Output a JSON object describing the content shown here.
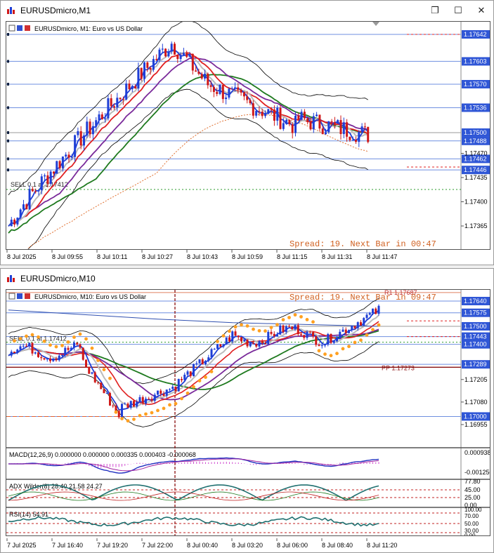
{
  "top": {
    "window_title": "EURUSDmicro,M1",
    "header": "EURUSDmicro, M1:  Euro vs US Dollar",
    "spread_text": "Spread: 19. Next Bar in 00:47",
    "sell_label": "SELL 0.1 at 1.17412",
    "price_labels": [
      "1.17642",
      "1.17603",
      "1.17570",
      "1.17536",
      "1.17500",
      "1.17488",
      "1.17462",
      "1.17446"
    ],
    "axis_ticks": [
      "1.17470",
      "1.17435",
      "1.17400",
      "1.17365"
    ],
    "time_labels": [
      "8 Jul 2025",
      "8 Jul 09:55",
      "8 Jul 10:11",
      "8 Jul 10:27",
      "8 Jul 10:43",
      "8 Jul 10:59",
      "8 Jul 11:15",
      "8 Jul 11:31",
      "8 Jul 11:47"
    ]
  },
  "bottom": {
    "window_title": "EURUSDmicro,M10",
    "header": "EURUSDmicro, M10:  Euro vs US Dollar",
    "spread_text": "Spread: 19. Next Bar in 09:47",
    "sell_label": "SELL 0.1 at 1.17412",
    "r1_label": "R1 1.17687",
    "pp_label": "PP 1.17273",
    "price_labels": [
      "1.17640",
      "1.17575",
      "1.17500",
      "1.17443",
      "1.17400",
      "1.17289",
      "1.17000"
    ],
    "axis_ticks": [
      "1.17205",
      "1.17080",
      "1.16955"
    ],
    "time_labels": [
      "7 Jul 2025",
      "7 Jul 16:40",
      "7 Jul 19:20",
      "7 Jul 22:00",
      "8 Jul 00:40",
      "8 Jul 03:20",
      "8 Jul 06:00",
      "8 Jul 08:40",
      "8 Jul 11:20"
    ],
    "macd": {
      "label": "MACD(12,26,9) 0.000000 0.000000 0.000335 0.000403 -0.000068",
      "ticks": [
        "0.000938",
        "-0.001250"
      ]
    },
    "adx": {
      "label": "ADX Wilder(8) 28.40 21.58 24.27",
      "ticks": [
        "77.80",
        "45.00",
        "25.00",
        "0.00"
      ]
    },
    "rsi": {
      "label": "RSI(14) 54.91",
      "ticks": [
        "100.00",
        "70.00",
        "50.00",
        "30.00",
        "0.00"
      ]
    }
  },
  "window_controls": {
    "restore": "❐",
    "minimize": "—",
    "maximize": "☐",
    "close": "✕"
  },
  "colors": {
    "bull": "#1f3fd6",
    "bear": "#d01818",
    "ma_red": "#e02020",
    "ma_purple": "#7a2a9a",
    "ma_green": "#1f7a1f",
    "ma_orange": "#e07030",
    "bb": "#000000",
    "label_bg": "#2f56d6",
    "sar": "#ffa020"
  }
}
